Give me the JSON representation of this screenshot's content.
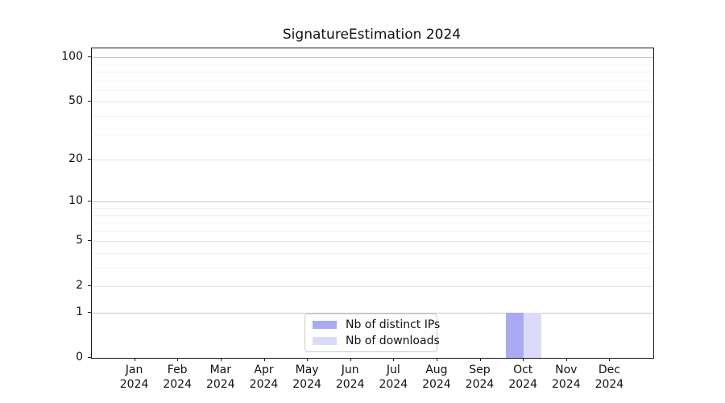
{
  "chart_data": {
    "type": "bar",
    "title": "SignatureEstimation 2024",
    "categories": [
      {
        "month": "Jan",
        "year": "2024"
      },
      {
        "month": "Feb",
        "year": "2024"
      },
      {
        "month": "Mar",
        "year": "2024"
      },
      {
        "month": "Apr",
        "year": "2024"
      },
      {
        "month": "May",
        "year": "2024"
      },
      {
        "month": "Jun",
        "year": "2024"
      },
      {
        "month": "Jul",
        "year": "2024"
      },
      {
        "month": "Aug",
        "year": "2024"
      },
      {
        "month": "Sep",
        "year": "2024"
      },
      {
        "month": "Oct",
        "year": "2024"
      },
      {
        "month": "Nov",
        "year": "2024"
      },
      {
        "month": "Dec",
        "year": "2024"
      }
    ],
    "series": [
      {
        "name": "Nb of distinct IPs",
        "color": "#aaaaf2",
        "values": [
          0,
          0,
          0,
          0,
          0,
          0,
          0,
          0,
          0,
          1,
          0,
          0
        ]
      },
      {
        "name": "Nb of downloads",
        "color": "#dbdbf9",
        "values": [
          0,
          0,
          0,
          0,
          0,
          0,
          0,
          0,
          0,
          1,
          0,
          0
        ]
      }
    ],
    "xlabel": "",
    "ylabel": "",
    "y_scale": "symlog",
    "y_ticks": [
      0,
      1,
      2,
      5,
      10,
      20,
      50,
      100
    ],
    "y_minor_gridlines": [
      3,
      4,
      6,
      7,
      8,
      9,
      30,
      40,
      60,
      70,
      80,
      90
    ],
    "ylim": [
      0,
      115
    ],
    "grid": "horizontal",
    "legend_position": "bottom-center-inside"
  },
  "colors": {
    "axis": "#1a1a1a",
    "grid_major": "#c6c6c6",
    "grid_mid": "#e4e4e4",
    "grid_minor": "#f3f3f3",
    "background": "#ffffff",
    "legend_border": "#cccccc"
  }
}
